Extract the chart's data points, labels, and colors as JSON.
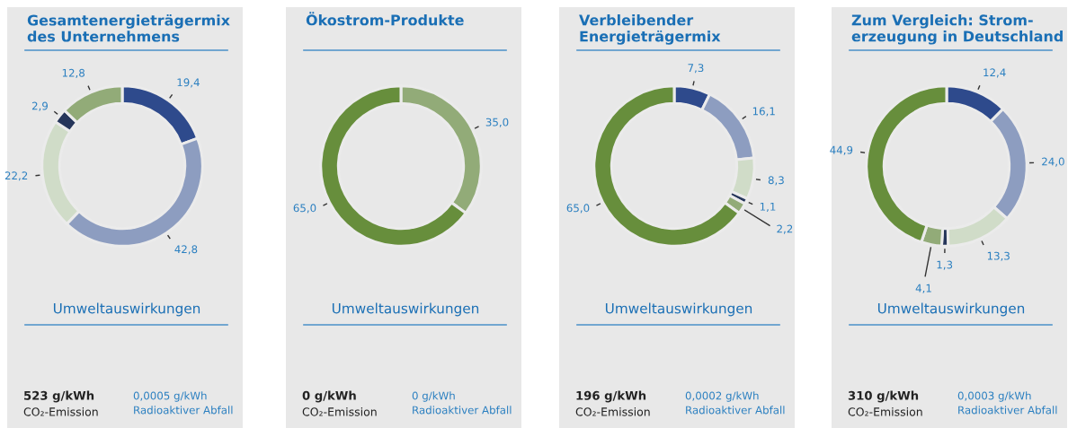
{
  "chart_data": [
    {
      "type": "donut",
      "title": "Gesamtenergieträgermix\ndes Unternehmens",
      "categories": [
        null,
        null,
        null,
        null,
        null
      ],
      "values": [
        19.4,
        42.8,
        22.2,
        2.9,
        12.8
      ],
      "colors": [
        "#2e4a8c",
        "#8d9dc0",
        "#d0dcc8",
        "#25355a",
        "#92ab78"
      ],
      "value_labels": [
        "19,4",
        "42,8",
        "22,2",
        "2,9",
        "12,8"
      ],
      "annotations": [
        "Umweltauswirkungen",
        "523 g/kWh",
        "CO₂-Emission",
        "0,0005 g/kWh",
        "Radioaktiver Abfall"
      ]
    },
    {
      "type": "donut",
      "title": "Ökostrom-Produkte",
      "categories": [
        null,
        null
      ],
      "values": [
        35.0,
        65.0
      ],
      "colors": [
        "#92ab78",
        "#678e3c"
      ],
      "value_labels": [
        "35,0",
        "65,0"
      ],
      "annotations": [
        "Umweltauswirkungen",
        "0 g/kWh",
        "CO₂-Emission",
        "0 g/kWh",
        "Radioaktiver Abfall"
      ]
    },
    {
      "type": "donut",
      "title": "Verbleibender\nEnergieträgermix",
      "categories": [
        null,
        null,
        null,
        null,
        null,
        null
      ],
      "values": [
        7.3,
        16.1,
        8.3,
        1.1,
        2.2,
        65.0
      ],
      "colors": [
        "#2e4a8c",
        "#8d9dc0",
        "#d0dcc8",
        "#25355a",
        "#92ab78",
        "#678e3c"
      ],
      "value_labels": [
        "7,3",
        "16,1",
        "8,3",
        "1,1",
        "2,2",
        "65,0"
      ],
      "annotations": [
        "Umweltauswirkungen",
        "196 g/kWh",
        "CO₂-Emission",
        "0,0002 g/kWh",
        "Radioaktiver Abfall"
      ]
    },
    {
      "type": "donut",
      "title": "Zum Vergleich: Strom-\nerzeugung in Deutschland",
      "categories": [
        null,
        null,
        null,
        null,
        null,
        null
      ],
      "values": [
        12.4,
        24.0,
        13.3,
        1.3,
        4.1,
        44.9
      ],
      "colors": [
        "#2e4a8c",
        "#8d9dc0",
        "#d0dcc8",
        "#25355a",
        "#92ab78",
        "#678e3c"
      ],
      "value_labels": [
        "12,4",
        "24,0",
        "13,3",
        "1,3",
        "4,1",
        "44,9"
      ],
      "annotations": [
        "Umweltauswirkungen",
        "310 g/kWh",
        "CO₂-Emission",
        "0,0003 g/kWh",
        "Radioaktiver Abfall"
      ]
    }
  ]
}
